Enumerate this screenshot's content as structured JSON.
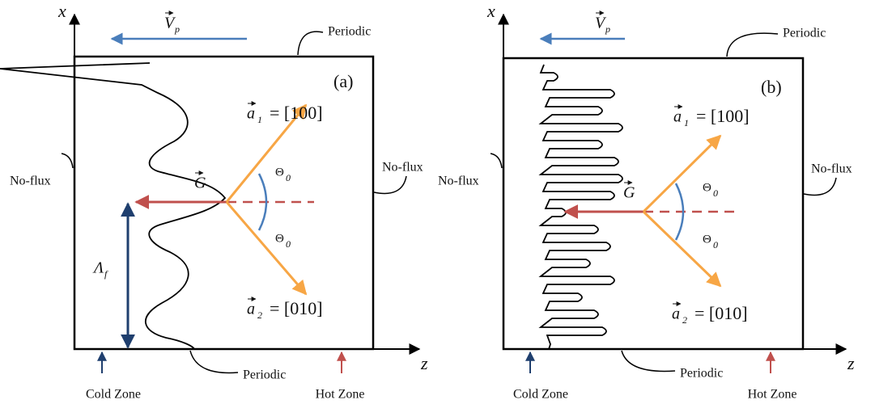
{
  "panels": [
    {
      "label": "(a)",
      "axis_x": "x",
      "axis_z": "z",
      "velocity": {
        "symbol": "V",
        "subscript": "p"
      },
      "top_boundary": "Periodic",
      "bottom_boundary": "Periodic",
      "left_boundary": "No-flux",
      "right_boundary": "No-flux",
      "gradient": "G",
      "a1": {
        "symbol": "a",
        "subscript": "1",
        "value": "= [100]"
      },
      "a2": {
        "symbol": "a",
        "subscript": "2",
        "value": "= [010]"
      },
      "theta_top": {
        "symbol": "Θ",
        "subscript": "0"
      },
      "theta_bottom": {
        "symbol": "Θ",
        "subscript": "0"
      },
      "spacing": {
        "symbol": "Λ",
        "subscript": "f"
      },
      "cold_zone": "Cold Zone",
      "hot_zone": "Hot Zone"
    },
    {
      "label": "(b)",
      "axis_x": "x",
      "axis_z": "z",
      "velocity": {
        "symbol": "V",
        "subscript": "p"
      },
      "top_boundary": "Periodic",
      "bottom_boundary": "Periodic",
      "left_boundary": "No-flux",
      "right_boundary": "No-flux",
      "gradient": "G",
      "a1": {
        "symbol": "a",
        "subscript": "1",
        "value": "= [100]"
      },
      "a2": {
        "symbol": "a",
        "subscript": "2",
        "value": "= [010]"
      },
      "theta_top": {
        "symbol": "Θ",
        "subscript": "0"
      },
      "theta_bottom": {
        "symbol": "Θ",
        "subscript": "0"
      },
      "cold_zone": "Cold Zone",
      "hot_zone": "Hot Zone"
    }
  ]
}
